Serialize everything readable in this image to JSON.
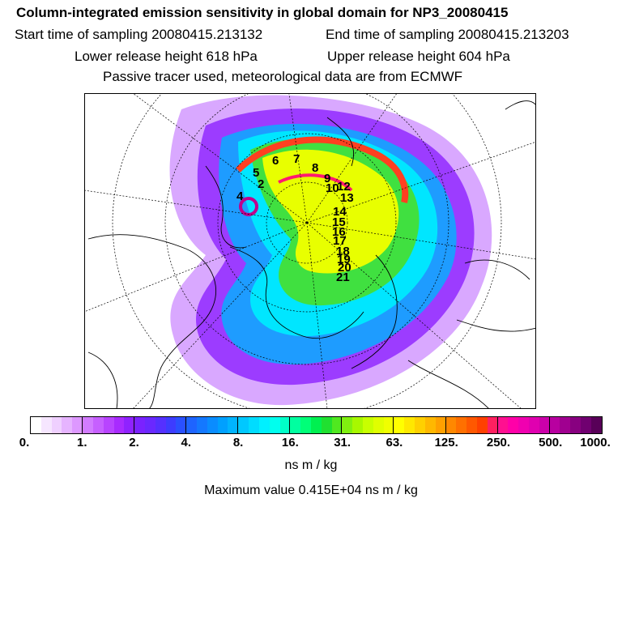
{
  "header": {
    "title": "Column-integrated emission sensitivity in global domain for NP3_20080415",
    "start_time": "Start time of sampling 20080415.213132",
    "end_time": "End time of sampling 20080415.213203",
    "lower_release": "Lower release height  618 hPa",
    "upper_release": "Upper release height  604 hPa",
    "tracer_info": "Passive tracer used, meteorological data are from ECMWF"
  },
  "trajectory_labels": [
    "2",
    "4",
    "5",
    "6",
    "7",
    "8",
    "9",
    "10",
    "12",
    "13",
    "14",
    "15",
    "16",
    "17",
    "18",
    "19",
    "20",
    "21"
  ],
  "colorbar": {
    "ticks": [
      "0.",
      "1.",
      "2.",
      "4.",
      "8.",
      "16.",
      "31.",
      "63.",
      "125.",
      "250.",
      "500.",
      "1000."
    ],
    "unit": "ns m / kg",
    "colors": [
      "#ffffff",
      "#f6e6ff",
      "#efd0ff",
      "#e6b4ff",
      "#dd98ff",
      "#d27cff",
      "#c660ff",
      "#b844ff",
      "#a82bff",
      "#8f22ff",
      "#7a22ff",
      "#6a28ff",
      "#5530ff",
      "#3d3cff",
      "#2a50ff",
      "#1e64ff",
      "#1478ff",
      "#0a8cff",
      "#00a0ff",
      "#00b4ff",
      "#00c8ff",
      "#00dcff",
      "#00f0ff",
      "#00ffee",
      "#00ffc8",
      "#00ffa0",
      "#00ff78",
      "#00f050",
      "#20e030",
      "#50e820",
      "#80f010",
      "#a8f800",
      "#c8ff00",
      "#e0ff00",
      "#f0ff00",
      "#ffff00",
      "#ffe800",
      "#ffd000",
      "#ffb800",
      "#ffa000",
      "#ff8800",
      "#ff7000",
      "#ff5800",
      "#ff4000",
      "#ff2060",
      "#ff1090",
      "#ff00a8",
      "#f000b0",
      "#e000b0",
      "#cc00aa",
      "#b800a0",
      "#a00090",
      "#880080",
      "#700070",
      "#580058"
    ],
    "major_count": 11
  },
  "max_value": "Maximum value  0.415E+04 ns m / kg"
}
